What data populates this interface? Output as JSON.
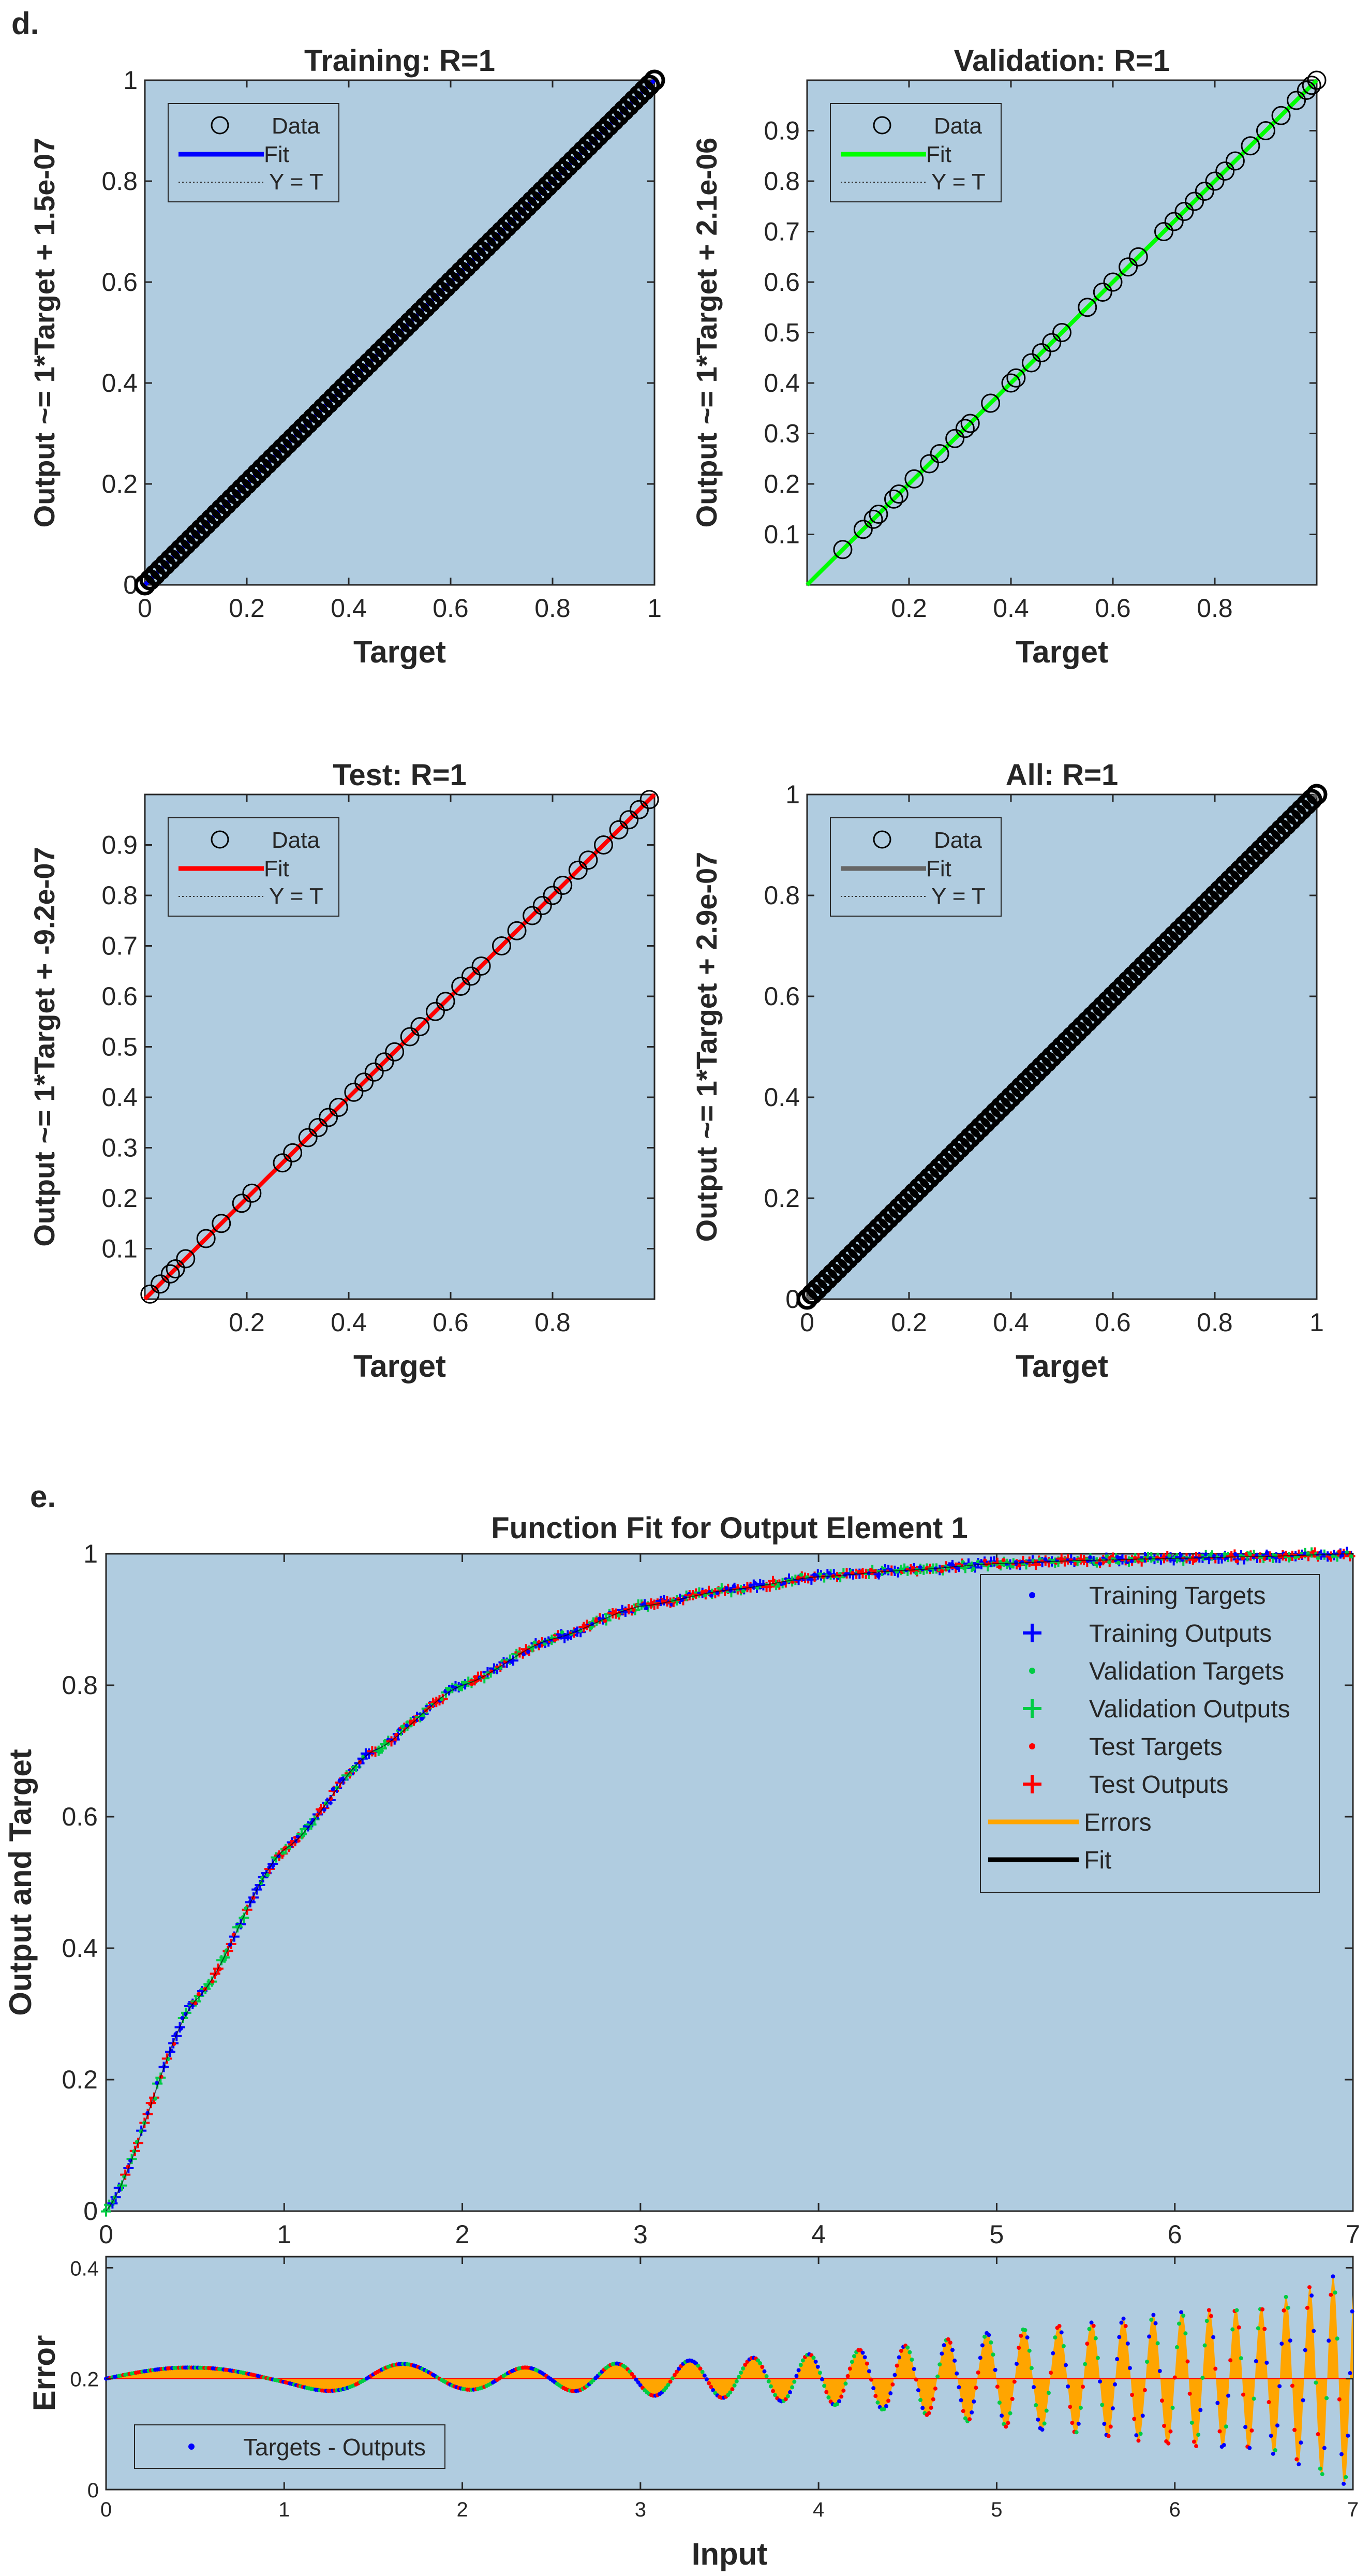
{
  "panel_d": {
    "label": "d.",
    "charts": [
      {
        "id": "training",
        "title": "Training: R=1",
        "xlabel": "Target",
        "ylabel": "Output ~= 1*Target + 1.5e-07",
        "xlim": [
          0,
          1
        ],
        "ylim": [
          0,
          1
        ],
        "xticks": [
          "0",
          "0.2",
          "0.4",
          "0.6",
          "0.8",
          "1"
        ],
        "xtick_values": [
          0,
          0.2,
          0.4,
          0.6,
          0.8,
          1
        ],
        "yticks": [
          "0",
          "0.2",
          "0.4",
          "0.6",
          "0.8",
          "1"
        ],
        "ytick_values": [
          0,
          0.2,
          0.4,
          0.6,
          0.8,
          1
        ],
        "fit_color": "#0000ff",
        "legend": {
          "data": "Data",
          "fit": "Fit",
          "yt": "Y = T"
        }
      },
      {
        "id": "validation",
        "title": "Validation: R=1",
        "xlabel": "Target",
        "ylabel": "Output ~= 1*Target + 2.1e-06",
        "xlim": [
          0,
          1
        ],
        "ylim": [
          0,
          1
        ],
        "xticks": [
          "0.2",
          "0.4",
          "0.6",
          "0.8"
        ],
        "xtick_values": [
          0.2,
          0.4,
          0.6,
          0.8
        ],
        "yticks": [
          "0.1",
          "0.2",
          "0.3",
          "0.4",
          "0.5",
          "0.6",
          "0.7",
          "0.8",
          "0.9"
        ],
        "ytick_values": [
          0.1,
          0.2,
          0.3,
          0.4,
          0.5,
          0.6,
          0.7,
          0.8,
          0.9
        ],
        "fit_color": "#00ff00",
        "legend": {
          "data": "Data",
          "fit": "Fit",
          "yt": "Y = T"
        }
      },
      {
        "id": "test",
        "title": "Test: R=1",
        "xlabel": "Target",
        "ylabel": "Output ~= 1*Target + -9.2e-07",
        "xlim": [
          0,
          1
        ],
        "ylim": [
          0,
          1
        ],
        "xticks": [
          "0.2",
          "0.4",
          "0.6",
          "0.8"
        ],
        "xtick_values": [
          0.2,
          0.4,
          0.6,
          0.8
        ],
        "yticks": [
          "0.1",
          "0.2",
          "0.3",
          "0.4",
          "0.5",
          "0.6",
          "0.7",
          "0.8",
          "0.9"
        ],
        "ytick_values": [
          0.1,
          0.2,
          0.3,
          0.4,
          0.5,
          0.6,
          0.7,
          0.8,
          0.9
        ],
        "fit_color": "#ff0000",
        "legend": {
          "data": "Data",
          "fit": "Fit",
          "yt": "Y = T"
        }
      },
      {
        "id": "all",
        "title": "All: R=1",
        "xlabel": "Target",
        "ylabel": "Output ~= 1*Target + 2.9e-07",
        "xlim": [
          0,
          1
        ],
        "ylim": [
          0,
          1
        ],
        "xticks": [
          "0",
          "0.2",
          "0.4",
          "0.6",
          "0.8",
          "1"
        ],
        "xtick_values": [
          0,
          0.2,
          0.4,
          0.6,
          0.8,
          1
        ],
        "yticks": [
          "0",
          "0.2",
          "0.4",
          "0.6",
          "0.8",
          "1"
        ],
        "ytick_values": [
          0,
          0.2,
          0.4,
          0.6,
          0.8,
          1
        ],
        "fit_color": "#666666",
        "legend": {
          "data": "Data",
          "fit": "Fit",
          "yt": "Y = T"
        }
      }
    ]
  },
  "panel_e": {
    "label": "e.",
    "title": "Function Fit for Output Element 1",
    "ylabel": "Output and Target",
    "xlabel": "Input",
    "error_ylabel": "Error",
    "legend": [
      {
        "label": "Training Targets",
        "marker": "dot",
        "color": "#0000ff"
      },
      {
        "label": "Training Outputs",
        "marker": "plus",
        "color": "#0000ff"
      },
      {
        "label": "Validation Targets",
        "marker": "dot",
        "color": "#00cc44"
      },
      {
        "label": "Validation Outputs",
        "marker": "plus",
        "color": "#00cc44"
      },
      {
        "label": "Test Targets",
        "marker": "dot",
        "color": "#ff0000"
      },
      {
        "label": "Test Outputs",
        "marker": "plus",
        "color": "#ff0000"
      },
      {
        "label": "Errors",
        "marker": "line",
        "color": "#ffa500"
      },
      {
        "label": "Fit",
        "marker": "line",
        "color": "#000000"
      }
    ],
    "error_legend": "Targets - Outputs",
    "colors": {
      "background": "#b0cce0",
      "errors": "#ffa500",
      "error_baseline": "#ff0000"
    }
  },
  "chart_data": [
    {
      "type": "scatter",
      "title": "Training: R=1",
      "xlabel": "Target",
      "ylabel": "Output ~= 1*Target + 1.5e-07",
      "x": [
        0,
        0.25,
        0.5,
        0.75,
        1
      ],
      "y": [
        0,
        0.25,
        0.5,
        0.75,
        1
      ],
      "fit": {
        "slope": 1,
        "intercept": 1.5e-07
      },
      "xlim": [
        0,
        1
      ],
      "ylim": [
        0,
        1
      ]
    },
    {
      "type": "scatter",
      "title": "Validation: R=1",
      "xlabel": "Target",
      "ylabel": "Output ~= 1*Target + 2.1e-06",
      "x": [
        0.07,
        0.11,
        0.13,
        0.14,
        0.17,
        0.18,
        0.21,
        0.24,
        0.26,
        0.29,
        0.31,
        0.32,
        0.36,
        0.4,
        0.41,
        0.44,
        0.46,
        0.48,
        0.5,
        0.55,
        0.58,
        0.6,
        0.63,
        0.65,
        0.7,
        0.72,
        0.74,
        0.76,
        0.78,
        0.8,
        0.82,
        0.84,
        0.87,
        0.9,
        0.93,
        0.96,
        0.98,
        0.99,
        1.0
      ],
      "y": [
        0.07,
        0.11,
        0.13,
        0.14,
        0.17,
        0.18,
        0.21,
        0.24,
        0.26,
        0.29,
        0.31,
        0.32,
        0.36,
        0.4,
        0.41,
        0.44,
        0.46,
        0.48,
        0.5,
        0.55,
        0.58,
        0.6,
        0.63,
        0.65,
        0.7,
        0.72,
        0.74,
        0.76,
        0.78,
        0.8,
        0.82,
        0.84,
        0.87,
        0.9,
        0.93,
        0.96,
        0.98,
        0.99,
        1.0
      ],
      "fit": {
        "slope": 1,
        "intercept": 2.1e-06
      },
      "xlim": [
        0,
        1
      ],
      "ylim": [
        0,
        1
      ]
    },
    {
      "type": "scatter",
      "title": "Test: R=1",
      "xlabel": "Target",
      "ylabel": "Output ~= 1*Target + -9.2e-07",
      "x": [
        0.01,
        0.03,
        0.05,
        0.06,
        0.08,
        0.12,
        0.15,
        0.19,
        0.21,
        0.27,
        0.29,
        0.32,
        0.34,
        0.36,
        0.38,
        0.41,
        0.43,
        0.45,
        0.47,
        0.49,
        0.52,
        0.54,
        0.57,
        0.59,
        0.62,
        0.64,
        0.66,
        0.7,
        0.73,
        0.76,
        0.78,
        0.8,
        0.82,
        0.85,
        0.87,
        0.9,
        0.93,
        0.95,
        0.97,
        0.99
      ],
      "y": [
        0.01,
        0.03,
        0.05,
        0.06,
        0.08,
        0.12,
        0.15,
        0.19,
        0.21,
        0.27,
        0.29,
        0.32,
        0.34,
        0.36,
        0.38,
        0.41,
        0.43,
        0.45,
        0.47,
        0.49,
        0.52,
        0.54,
        0.57,
        0.59,
        0.62,
        0.64,
        0.66,
        0.7,
        0.73,
        0.76,
        0.78,
        0.8,
        0.82,
        0.85,
        0.87,
        0.9,
        0.93,
        0.95,
        0.97,
        0.99
      ],
      "fit": {
        "slope": 1,
        "intercept": -9.2e-07
      },
      "xlim": [
        0,
        1
      ],
      "ylim": [
        0,
        1
      ]
    },
    {
      "type": "scatter",
      "title": "All: R=1",
      "xlabel": "Target",
      "ylabel": "Output ~= 1*Target + 2.9e-07",
      "x": [
        0,
        0.25,
        0.5,
        0.75,
        1
      ],
      "y": [
        0,
        0.25,
        0.5,
        0.75,
        1
      ],
      "fit": {
        "slope": 1,
        "intercept": 2.9e-07
      },
      "xlim": [
        0,
        1
      ],
      "ylim": [
        0,
        1
      ]
    },
    {
      "type": "line",
      "title": "Function Fit for Output Element 1",
      "xlabel": "Input",
      "ylabel": "Output and Target",
      "x": [
        0,
        0.5,
        1,
        1.5,
        2,
        2.5,
        3,
        3.5,
        4,
        4.5,
        5,
        5.5,
        6,
        6.5,
        7
      ],
      "y": [
        0,
        0.32,
        0.55,
        0.7,
        0.8,
        0.87,
        0.92,
        0.945,
        0.965,
        0.975,
        0.985,
        0.99,
        0.993,
        0.996,
        1.0
      ],
      "xlim": [
        0,
        7
      ],
      "ylim": [
        0,
        1
      ],
      "xticks": [
        "0",
        "1",
        "2",
        "3",
        "4",
        "5",
        "6",
        "7"
      ],
      "yticks": [
        "0",
        "0.2",
        "0.4",
        "0.6",
        "0.8",
        "1"
      ]
    },
    {
      "type": "area",
      "title": "",
      "xlabel": "Input",
      "ylabel": "Error",
      "x": [
        0,
        0.5,
        1,
        1.5,
        2,
        2.5,
        3,
        3.5,
        4,
        4.5,
        5,
        5.5,
        6,
        6.5,
        7
      ],
      "baseline": 0.2,
      "envelope": [
        0.03,
        0.02,
        0.015,
        0.03,
        0.02,
        0.02,
        0.03,
        0.035,
        0.045,
        0.06,
        0.085,
        0.1,
        0.12,
        0.13,
        0.2
      ],
      "ylim": [
        0,
        0.42
      ],
      "xlim": [
        0,
        7
      ],
      "xticks": [
        "0",
        "1",
        "2",
        "3",
        "4",
        "5",
        "6",
        "7"
      ],
      "yticks": [
        "0",
        "0.2",
        "0.4"
      ]
    }
  ]
}
